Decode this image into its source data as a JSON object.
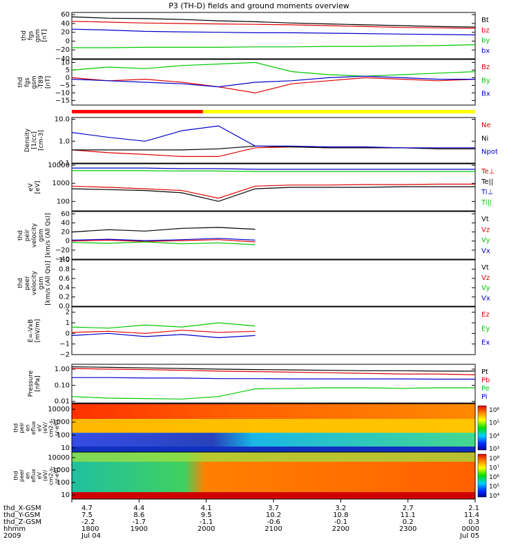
{
  "chart_data": {
    "type": "line",
    "title": "P3 (TH-D) fields and ground moments overview",
    "time_axis": {
      "ticks": [
        "1800",
        "1900",
        "2000",
        "2100",
        "2200",
        "2300",
        "0000"
      ],
      "dates": [
        "Jul 04",
        "Jul 05"
      ],
      "ephemeris_labels": [
        "thd_X-GSM",
        "thd_Y-GSM",
        "thd_Z-GSM",
        "hhmm",
        "2009"
      ],
      "x_gsm": [
        "4.7",
        "4.4",
        "4.1",
        "3.7",
        "3.2",
        "2.7",
        "2.1"
      ],
      "y_gsm": [
        "7.5",
        "8.6",
        "9.5",
        "10.2",
        "10.8",
        "11.1",
        "11.4"
      ],
      "z_gsm": [
        "-2.2",
        "-1.7",
        "-1.1",
        "-0.6",
        "-0.1",
        "0.2",
        "0.3"
      ]
    },
    "panels": [
      {
        "ylabel": [
          "thd",
          "fgs",
          "gsm",
          "[nT]"
        ],
        "ylim": [
          -40,
          65
        ],
        "yticks": [
          "60",
          "40",
          "20",
          "0",
          "−20",
          "−40"
        ],
        "series": [
          {
            "name": "Bt",
            "color": "#000000",
            "values": [
              55,
              52,
              51,
              49,
              46,
              44,
              41,
              39,
              37,
              35,
              33,
              32
            ]
          },
          {
            "name": "bz",
            "color": "#e00000",
            "values": [
              45,
              43,
              41,
              40,
              39,
              38,
              37,
              35,
              33,
              31,
              30,
              29
            ]
          },
          {
            "name": "by",
            "color": "#00c800",
            "values": [
              -15,
              -15,
              -14,
              -14,
              -14,
              -13,
              -13,
              -12,
              -12,
              -11,
              -10,
              -8
            ]
          },
          {
            "name": "bx",
            "color": "#0000cc",
            "values": [
              27,
              25,
              22,
              21,
              20,
              19,
              19,
              18,
              17,
              16,
              15,
              14
            ]
          }
        ]
      },
      {
        "ylabel": [
          "thd",
          "fgs",
          "gsm",
          "-T89",
          "[nT]"
        ],
        "ylim": [
          -18,
          12
        ],
        "yticks": [
          "10",
          "5",
          "0",
          "−5",
          "−10",
          "−15"
        ],
        "series": [
          {
            "name": "Bz",
            "color": "#e00000",
            "values": [
              0,
              -2,
              -1,
              -3,
              -6,
              -10,
              -4,
              -2,
              0,
              -1,
              -2,
              -1
            ]
          },
          {
            "name": "By",
            "color": "#00c800",
            "values": [
              5,
              7,
              6,
              8,
              9,
              10,
              4,
              2,
              1,
              2,
              3,
              4
            ]
          },
          {
            "name": "Bx",
            "color": "#0000cc",
            "values": [
              -1,
              -2,
              -3,
              -4,
              -6,
              -3,
              -2,
              0,
              1,
              0,
              -1,
              -1
            ]
          }
        ]
      },
      {
        "ylabel": [
          "Density",
          "[1/cc]",
          "[cm-3]"
        ],
        "scale": "log",
        "ylim": [
          0.1,
          12
        ],
        "yticks": [
          "10.0",
          "1.0",
          "0.1"
        ],
        "series": [
          {
            "name": "Ne",
            "color": "#e00000",
            "values": [
              0.4,
              0.3,
              0.25,
              0.2,
              0.2,
              0.5,
              0.55,
              0.5,
              0.5,
              0.5,
              0.45,
              0.45
            ]
          },
          {
            "name": "Ni",
            "color": "#000000",
            "values": [
              0.4,
              0.4,
              0.4,
              0.4,
              0.45,
              0.6,
              0.55,
              0.5,
              0.5,
              0.5,
              0.45,
              0.45
            ]
          },
          {
            "name": "Npot",
            "color": "#0000cc",
            "values": [
              2.5,
              1.5,
              1.0,
              3.0,
              5.0,
              0.6,
              0.6,
              0.55,
              0.55,
              0.5,
              0.5,
              0.5
            ]
          }
        ]
      },
      {
        "ylabel": [
          "eV",
          "[eV]"
        ],
        "scale": "log",
        "ylim": [
          30,
          12000
        ],
        "yticks": [
          "10000",
          "1000",
          "100"
        ],
        "series": [
          {
            "name": "Te⊥",
            "color": "#e00000",
            "values": [
              700,
              600,
              500,
              400,
              150,
              700,
              800,
              800,
              850,
              850,
              900,
              900
            ]
          },
          {
            "name": "Te||",
            "color": "#000000",
            "values": [
              500,
              450,
              400,
              300,
              100,
              500,
              600,
              600,
              600,
              650,
              650,
              650
            ]
          },
          {
            "name": "Ti⊥",
            "color": "#0000cc",
            "values": [
              7000,
              7000,
              7000,
              6500,
              6500,
              6000,
              6000,
              6000,
              6000,
              6000,
              6000,
              6000
            ]
          },
          {
            "name": "Ti||",
            "color": "#00c800",
            "values": [
              5000,
              5000,
              5000,
              4800,
              4800,
              4500,
              4500,
              4500,
              4500,
              4500,
              4500,
              4500
            ]
          }
        ]
      },
      {
        "ylabel": [
          "thd",
          "peir",
          "velocity",
          "gsm",
          "[km/s (All Qs)]"
        ],
        "ylim": [
          -40,
          65
        ],
        "yticks": [
          "60",
          "40",
          "20",
          "0",
          "−20",
          "−40"
        ],
        "series": [
          {
            "name": "Vt",
            "color": "#000000",
            "values": [
              20,
              25,
              22,
              28,
              30,
              26,
              null,
              null,
              null,
              null,
              null,
              null
            ]
          },
          {
            "name": "Vz",
            "color": "#e00000",
            "values": [
              0,
              2,
              -1,
              1,
              3,
              -2,
              null,
              null,
              null,
              null,
              null,
              null
            ]
          },
          {
            "name": "Vy",
            "color": "#00c800",
            "values": [
              -3,
              -5,
              -2,
              -6,
              -4,
              -8,
              null,
              null,
              null,
              null,
              null,
              null
            ]
          },
          {
            "name": "Vx",
            "color": "#0000cc",
            "values": [
              2,
              4,
              1,
              3,
              6,
              2,
              null,
              null,
              null,
              null,
              null,
              null
            ]
          }
        ]
      },
      {
        "ylabel": [
          "thd",
          "peer",
          "velocity",
          "gsm",
          "[km/s (All Qs)]"
        ],
        "ylim": [
          0,
          1
        ],
        "yticks": [
          "1.0",
          "0.8",
          "0.6",
          "0.4",
          "0.2",
          "0.0"
        ],
        "series": [
          {
            "name": "Vt",
            "color": "#000000",
            "values": []
          },
          {
            "name": "Vz",
            "color": "#e00000",
            "values": []
          },
          {
            "name": "Vy",
            "color": "#00c800",
            "values": []
          },
          {
            "name": "Vx",
            "color": "#0000cc",
            "values": []
          }
        ]
      },
      {
        "ylabel": [
          "E=-VxB",
          "[mV/m]"
        ],
        "ylim": [
          -2,
          2.5
        ],
        "yticks": [
          "2",
          "1",
          "0",
          "−1",
          "−2"
        ],
        "series": [
          {
            "name": "Ez",
            "color": "#e00000",
            "values": [
              0.1,
              0.2,
              0.0,
              0.3,
              0.1,
              0.2,
              null,
              null,
              null,
              null,
              null,
              null
            ]
          },
          {
            "name": "Ey",
            "color": "#00c800",
            "values": [
              0.6,
              0.5,
              0.8,
              0.6,
              1.0,
              0.7,
              null,
              null,
              null,
              null,
              null,
              null
            ]
          },
          {
            "name": "Ex",
            "color": "#0000cc",
            "values": [
              -0.2,
              0.0,
              -0.3,
              -0.1,
              -0.4,
              -0.2,
              null,
              null,
              null,
              null,
              null,
              null
            ]
          }
        ]
      },
      {
        "ylabel": [
          "Pressure",
          "[nPa]"
        ],
        "scale": "log",
        "ylim": [
          0.008,
          2
        ],
        "yticks": [
          "1.00",
          "0.10",
          "0.01"
        ],
        "series": [
          {
            "name": "Pt",
            "color": "#000000",
            "values": [
              1.4,
              1.3,
              1.2,
              1.1,
              1.0,
              0.95,
              0.9,
              0.85,
              0.8,
              0.8,
              0.75,
              0.75
            ]
          },
          {
            "name": "Pb",
            "color": "#e00000",
            "values": [
              1.1,
              1.0,
              0.95,
              0.85,
              0.75,
              0.7,
              0.65,
              0.6,
              0.55,
              0.5,
              0.5,
              0.45
            ]
          },
          {
            "name": "Pe",
            "color": "#00c800",
            "values": [
              0.02,
              0.016,
              0.015,
              0.014,
              0.02,
              0.06,
              0.065,
              0.07,
              0.07,
              0.065,
              0.07,
              0.07
            ]
          },
          {
            "name": "Pi",
            "color": "#0000cc",
            "values": [
              0.3,
              0.3,
              0.28,
              0.28,
              0.26,
              0.26,
              0.25,
              0.25,
              0.25,
              0.25,
              0.24,
              0.24
            ]
          }
        ]
      }
    ],
    "spectrograms": [
      {
        "ylabel": [
          "thd",
          "peir",
          "en",
          "eflux",
          "eV",
          "(eV/",
          "cm2-s-",
          "sr-eV)"
        ],
        "yticks": [
          "10000",
          "1000",
          "100",
          "10"
        ],
        "colorbar_ticks": [
          "10⁶",
          "10⁵",
          "10⁴",
          "10³"
        ]
      },
      {
        "ylabel": [
          "thd",
          "peer",
          "en",
          "eflux",
          "eV",
          "(eV/",
          "cm2-s-",
          "sr-eV)"
        ],
        "yticks": [
          "10000",
          "1000",
          "100",
          "10"
        ],
        "colorbar_ticks": [
          "10⁸",
          "10⁷",
          "10⁶",
          "10⁵",
          "10⁴"
        ]
      }
    ],
    "mode_bar": [
      {
        "color": "#ff0000",
        "fraction": 0.325
      },
      {
        "color": "#ffff00",
        "fraction": 0.675
      }
    ]
  }
}
